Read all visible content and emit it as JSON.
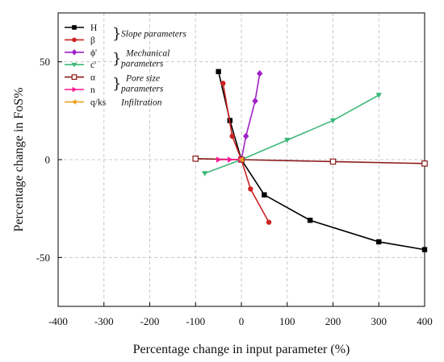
{
  "chart_data": {
    "type": "line",
    "xlabel": "Percentage change in input parameter (%)",
    "ylabel": "Percentage change in FoS%",
    "xlim": [
      -400,
      400
    ],
    "ylim": [
      -75,
      75
    ],
    "xticks": [
      -400,
      -300,
      -200,
      -100,
      0,
      100,
      200,
      300,
      400
    ],
    "yticks": [
      -50,
      0,
      50
    ],
    "xtick_labels": [
      "-400",
      "-300",
      "-200",
      "-100",
      "0",
      "100",
      "200",
      "300",
      "400"
    ],
    "ytick_labels": [
      "-50",
      "0",
      "50"
    ],
    "grid": true,
    "legend_position": "top-left",
    "series": [
      {
        "name": "H",
        "color": "#000000",
        "marker": "square-filled",
        "x": [
          -50,
          -25,
          0,
          50,
          150,
          300,
          400
        ],
        "y": [
          45,
          20,
          0,
          -18,
          -31,
          -42,
          -46
        ]
      },
      {
        "name": "β",
        "color": "#cc2222",
        "marker": "circle-filled",
        "x": [
          -40,
          -20,
          0,
          20,
          60
        ],
        "y": [
          39,
          12,
          0,
          -15,
          -32
        ]
      },
      {
        "name": "ϕ'",
        "color": "#a020c8",
        "marker": "diamond-filled",
        "x": [
          0,
          10,
          30,
          40
        ],
        "y": [
          0,
          12,
          30,
          44
        ]
      },
      {
        "name": "c'",
        "color": "#3cb878",
        "marker": "triangle-down-filled",
        "x": [
          -80,
          0,
          100,
          200,
          300
        ],
        "y": [
          -7,
          0,
          10,
          20,
          33
        ]
      },
      {
        "name": "α",
        "color": "#8b1a1a",
        "marker": "square-open",
        "x": [
          -100,
          0,
          200,
          400
        ],
        "y": [
          0.5,
          0,
          -1,
          -2
        ]
      },
      {
        "name": "n",
        "color": "#ff1493",
        "marker": "triangle-right-filled",
        "x": [
          -50,
          -25,
          0
        ],
        "y": [
          0,
          0,
          0
        ]
      },
      {
        "name": "q/ks",
        "color": "#e8a020",
        "marker": "triangle-left-filled",
        "x": [
          0
        ],
        "y": [
          0
        ]
      }
    ],
    "annotations": [
      {
        "text": "Slope parameters",
        "series": [
          "H",
          "β"
        ]
      },
      {
        "text": "Mechanical parameters",
        "lines": [
          "Mechanical",
          "parameters"
        ],
        "series": [
          "ϕ'",
          "c'"
        ]
      },
      {
        "text": "Pore size parameters",
        "lines": [
          "Pore size",
          "parameters"
        ],
        "series": [
          "α",
          "n"
        ]
      },
      {
        "text": "Infiltration",
        "series": [
          "q/ks"
        ]
      }
    ]
  }
}
